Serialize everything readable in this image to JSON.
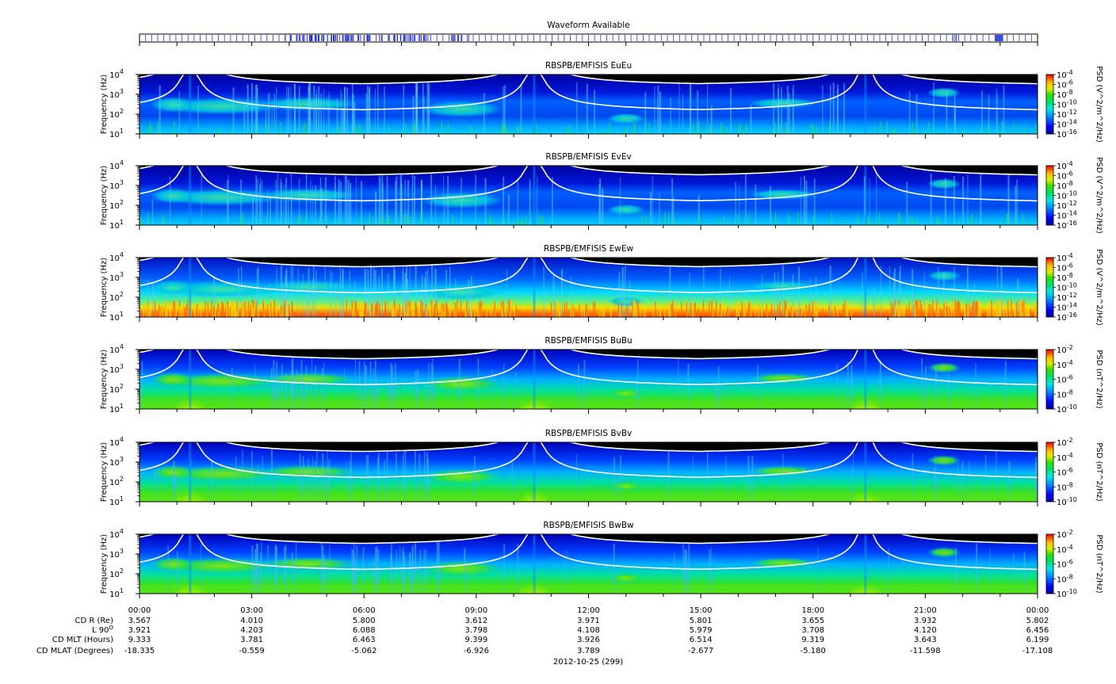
{
  "waveform": {
    "title": "Waveform Available",
    "colors": {
      "marker": "#3344dd",
      "dense": "#2233cc"
    }
  },
  "panels": [
    {
      "id": "EuEu",
      "title": "RBSPB/EMFISIS  EuEu",
      "ylabel": "Frequency (Hz)",
      "cblabel": "PSD (V^2/m^2/Hz)",
      "cb_ticks": [
        "10-4",
        "10-6",
        "10-8",
        "10-10",
        "10-12",
        "10-14",
        "10-16"
      ],
      "kind": "E"
    },
    {
      "id": "EvEv",
      "title": "RBSPB/EMFISIS  EvEv",
      "ylabel": "Frequency (Hz)",
      "cblabel": "PSD (V^2/m^2/Hz)",
      "cb_ticks": [
        "10-4",
        "10-6",
        "10-8",
        "10-10",
        "10-12",
        "10-14",
        "10-16"
      ],
      "kind": "E"
    },
    {
      "id": "EwEw",
      "title": "RBSPB/EMFISIS  EwEw",
      "ylabel": "Frequency (Hz)",
      "cblabel": "PSD (V^2/m^2/Hz)",
      "cb_ticks": [
        "10-4",
        "10-6",
        "10-8",
        "10-10",
        "10-12",
        "10-14",
        "10-16"
      ],
      "kind": "Ew"
    },
    {
      "id": "BuBu",
      "title": "RBSPB/EMFISIS  BuBu",
      "ylabel": "Frequency (Hz)",
      "cblabel": "PSD (nT^2/Hz)",
      "cb_ticks": [
        "10-2",
        "10-4",
        "10-6",
        "10-8",
        "10-10"
      ],
      "kind": "B"
    },
    {
      "id": "BvBv",
      "title": "RBSPB/EMFISIS  BvBv",
      "ylabel": "Frequency (Hz)",
      "cblabel": "PSD (nT^2/Hz)",
      "cb_ticks": [
        "10-2",
        "10-4",
        "10-6",
        "10-8",
        "10-10"
      ],
      "kind": "B"
    },
    {
      "id": "BwBw",
      "title": "RBSPB/EMFISIS  BwBw",
      "ylabel": "Frequency (Hz)",
      "cblabel": "PSD (nT^2/Hz)",
      "cb_ticks": [
        "10-2",
        "10-4",
        "10-6",
        "10-8",
        "10-10"
      ],
      "kind": "B"
    }
  ],
  "y_ticks": [
    "10",
    "10",
    "10",
    "10"
  ],
  "y_tick_exponents": [
    "1",
    "2",
    "3",
    "4"
  ],
  "x_ticks": [
    "00:00",
    "03:00",
    "06:00",
    "09:00",
    "12:00",
    "15:00",
    "18:00",
    "21:00",
    "00:00"
  ],
  "ephemeris": {
    "labels": [
      "CD R (Re)",
      "L 90",
      "CD MLT (Hours)",
      "CD MLAT (Degrees)"
    ],
    "label_superscript": "O",
    "rows": [
      [
        "3.567",
        "4.010",
        "5.800",
        "3.612",
        "3.971",
        "5.801",
        "3.655",
        "3.932",
        "5.802"
      ],
      [
        "3.921",
        "4.203",
        "6.088",
        "3.798",
        "4.108",
        "5.979",
        "3.708",
        "4.120",
        "6.456"
      ],
      [
        "9.333",
        "3.781",
        "6.463",
        "9.399",
        "3.926",
        "6.514",
        "9.319",
        "3.643",
        "6.199"
      ],
      [
        "-18.335",
        "-0.559",
        "-5.062",
        "-6.926",
        "3.789",
        "-2.677",
        "-5.180",
        "-11.598",
        "-17.108"
      ]
    ]
  },
  "date_label": "2012-10-25 (299)",
  "chart_data": [
    {
      "type": "heatmap",
      "title": "Waveform Available",
      "x": [
        "00:00",
        "03:00",
        "06:00",
        "09:00",
        "12:00",
        "15:00",
        "18:00",
        "21:00",
        "00:00"
      ]
    },
    {
      "type": "heatmap",
      "title": "RBSPB/EMFISIS  EuEu",
      "ylabel": "Frequency (Hz)",
      "y_scale": "log",
      "ylim": [
        10,
        10000
      ],
      "x": [
        "00:00",
        "03:00",
        "06:00",
        "09:00",
        "12:00",
        "15:00",
        "18:00",
        "21:00",
        "00:00"
      ],
      "colorbar": {
        "label": "PSD (V^2/m^2/Hz)",
        "scale": "log",
        "range": [
          1e-16,
          0.0001
        ]
      }
    },
    {
      "type": "heatmap",
      "title": "RBSPB/EMFISIS  EvEv",
      "ylabel": "Frequency (Hz)",
      "y_scale": "log",
      "ylim": [
        10,
        10000
      ],
      "x": [
        "00:00",
        "03:00",
        "06:00",
        "09:00",
        "12:00",
        "15:00",
        "18:00",
        "21:00",
        "00:00"
      ],
      "colorbar": {
        "label": "PSD (V^2/m^2/Hz)",
        "scale": "log",
        "range": [
          1e-16,
          0.0001
        ]
      }
    },
    {
      "type": "heatmap",
      "title": "RBSPB/EMFISIS  EwEw",
      "ylabel": "Frequency (Hz)",
      "y_scale": "log",
      "ylim": [
        10,
        10000
      ],
      "x": [
        "00:00",
        "03:00",
        "06:00",
        "09:00",
        "12:00",
        "15:00",
        "18:00",
        "21:00",
        "00:00"
      ],
      "colorbar": {
        "label": "PSD (V^2/m^2/Hz)",
        "scale": "log",
        "range": [
          1e-16,
          0.0001
        ]
      }
    },
    {
      "type": "heatmap",
      "title": "RBSPB/EMFISIS  BuBu",
      "ylabel": "Frequency (Hz)",
      "y_scale": "log",
      "ylim": [
        10,
        10000
      ],
      "x": [
        "00:00",
        "03:00",
        "06:00",
        "09:00",
        "12:00",
        "15:00",
        "18:00",
        "21:00",
        "00:00"
      ],
      "colorbar": {
        "label": "PSD (nT^2/Hz)",
        "scale": "log",
        "range": [
          1e-10,
          0.01
        ]
      }
    },
    {
      "type": "heatmap",
      "title": "RBSPB/EMFISIS  BvBv",
      "ylabel": "Frequency (Hz)",
      "y_scale": "log",
      "ylim": [
        10,
        10000
      ],
      "x": [
        "00:00",
        "03:00",
        "06:00",
        "09:00",
        "12:00",
        "15:00",
        "18:00",
        "21:00",
        "00:00"
      ],
      "colorbar": {
        "label": "PSD (nT^2/Hz)",
        "scale": "log",
        "range": [
          1e-10,
          0.01
        ]
      }
    },
    {
      "type": "heatmap",
      "title": "RBSPB/EMFISIS  BwBw",
      "ylabel": "Frequency (Hz)",
      "y_scale": "log",
      "ylim": [
        10,
        10000
      ],
      "x": [
        "00:00",
        "03:00",
        "06:00",
        "09:00",
        "12:00",
        "15:00",
        "18:00",
        "21:00",
        "00:00"
      ],
      "colorbar": {
        "label": "PSD (nT^2/Hz)",
        "scale": "log",
        "range": [
          1e-10,
          0.01
        ]
      }
    }
  ]
}
